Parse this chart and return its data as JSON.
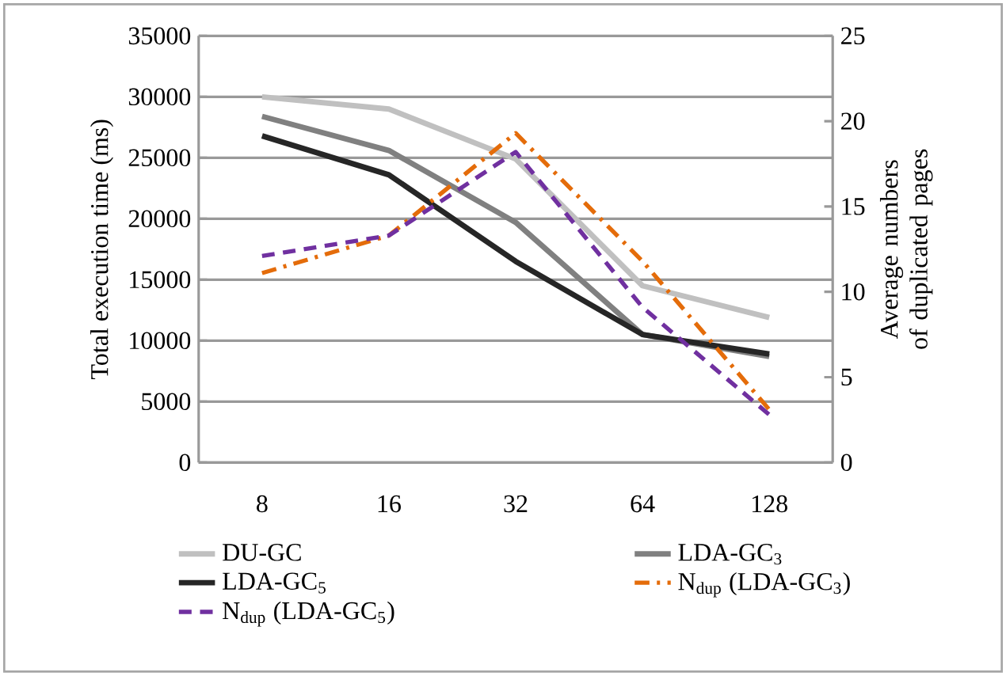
{
  "chart_data": {
    "type": "line",
    "ylabel": "Total execution time (ms)",
    "y2label": "Average numbers of duplicated pages",
    "categories": [
      "8",
      "16",
      "32",
      "64",
      "128"
    ],
    "ylim": [
      0,
      35000
    ],
    "yticks": [
      0,
      5000,
      10000,
      15000,
      20000,
      25000,
      30000,
      35000
    ],
    "y2lim": [
      0,
      25
    ],
    "y2ticks": [
      0,
      5,
      10,
      15,
      20,
      25
    ],
    "grid": "y",
    "legend": "bottom",
    "series": [
      {
        "name": "DU-GC",
        "color": "#c0c0c0",
        "line_style": "solid",
        "values": [
          30000,
          29000,
          24900,
          14500,
          11900
        ]
      },
      {
        "name": "LDA-GC$_{3}$",
        "color": "#808080",
        "line_style": "solid",
        "values": [
          28400,
          25600,
          19700,
          10500,
          8700
        ]
      },
      {
        "name": "LDA-GC$_{5}$",
        "color": "#262626",
        "line_style": "solid",
        "values": [
          26800,
          23600,
          16500,
          10500,
          8900
        ]
      },
      {
        "name": "N$_{dup}$ (LDA-GC$_{3}$)",
        "color": "#e46c0a",
        "line_style": "dashdot",
        "axis": "y2",
        "values": [
          11.1,
          13.3,
          19.3,
          11.8,
          3.1
        ]
      },
      {
        "name": "N$_{dup}$ (LDA-GC$_{5}$)",
        "color": "#7030a0",
        "line_style": "dashed",
        "axis": "y2",
        "values": [
          12.1,
          13.3,
          18.2,
          9.1,
          2.8
        ]
      }
    ]
  }
}
